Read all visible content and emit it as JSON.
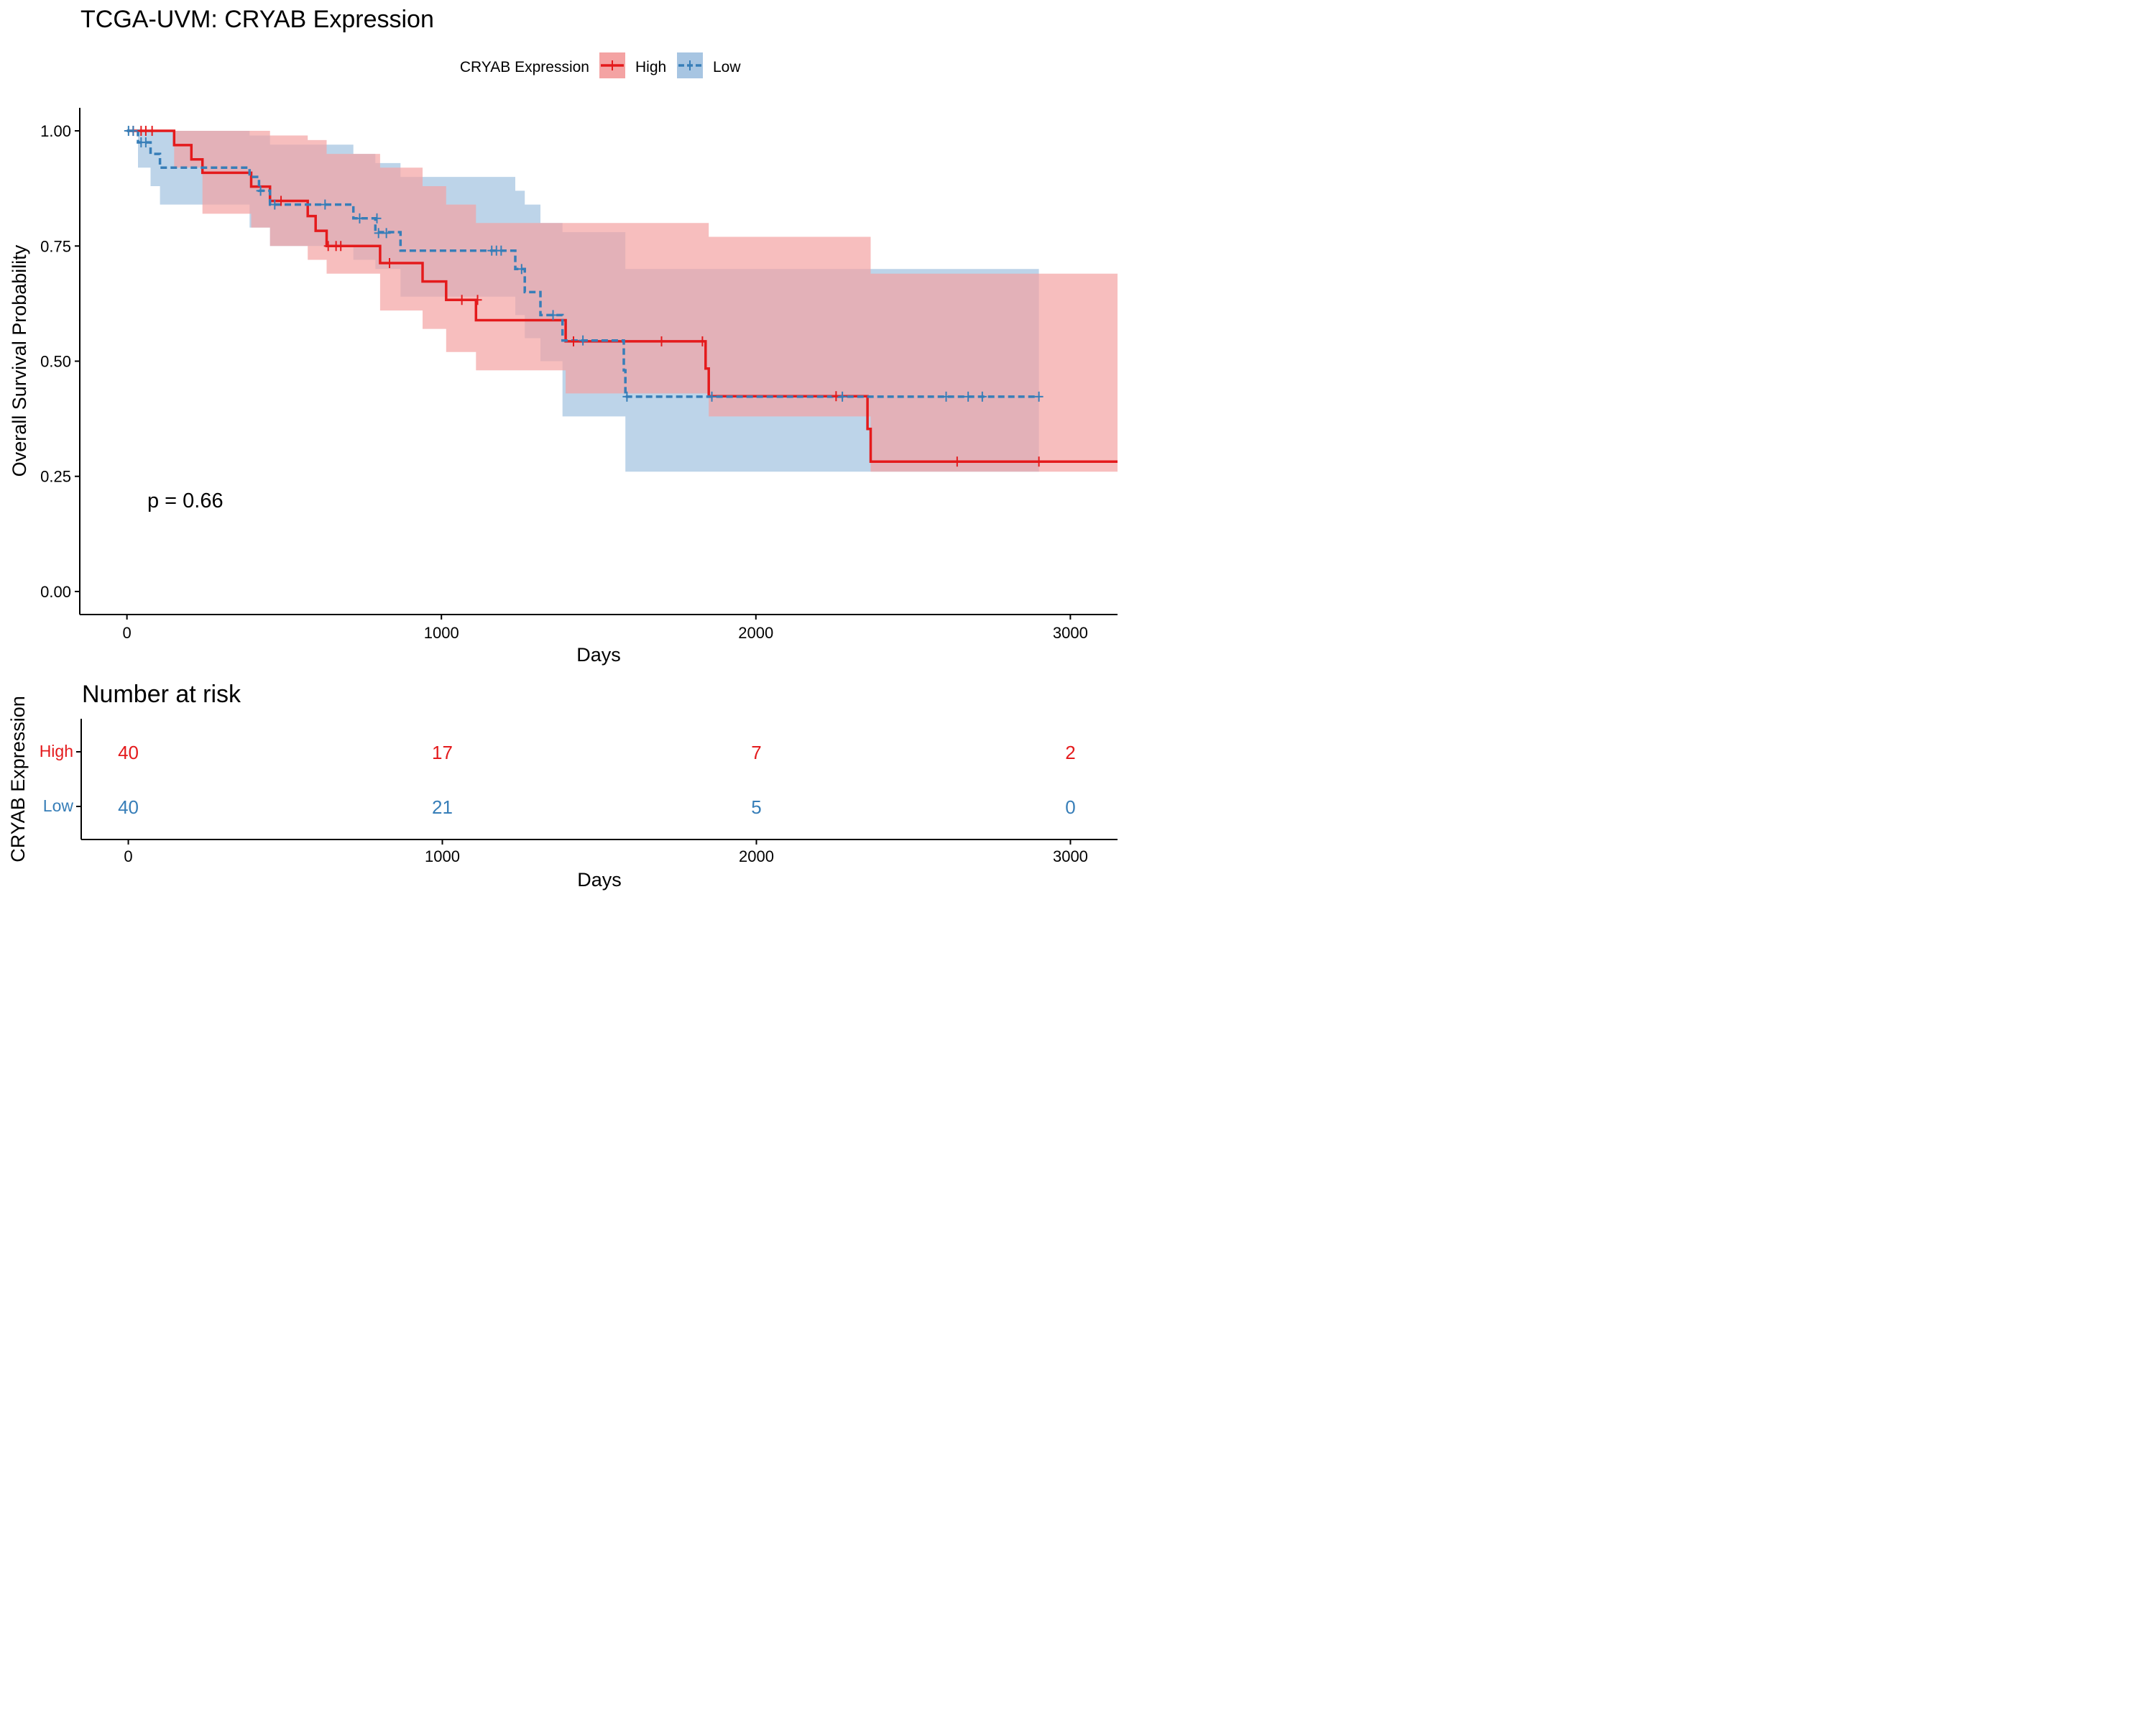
{
  "colors": {
    "high": "#e41a1c",
    "low": "#377eb8",
    "high_band": "#f4a3a3",
    "low_band": "#a7c5e2",
    "axis": "#000000"
  },
  "chart_data": {
    "type": "kaplan-meier",
    "title": "TCGA-UVM: CRYAB Expression",
    "legend": {
      "title": "CRYAB Expression",
      "position": "top",
      "entries": [
        "High",
        "Low"
      ]
    },
    "xlabel": "Days",
    "ylabel": "Overall Survival Probability",
    "xlim": [
      -150,
      3150
    ],
    "ylim": [
      -0.05,
      1.05
    ],
    "xticks": [
      0,
      1000,
      2000,
      3000
    ],
    "yticks": [
      0.0,
      0.25,
      0.5,
      0.75,
      1.0
    ],
    "ytick_labels": [
      "0.00",
      "0.25",
      "0.50",
      "0.75",
      "1.00"
    ],
    "pvalue_label": "p = 0.66",
    "series": [
      {
        "name": "High",
        "line": "solid",
        "steps": [
          [
            0,
            1.0
          ],
          [
            150,
            0.969
          ],
          [
            205,
            0.938
          ],
          [
            240,
            0.909
          ],
          [
            395,
            0.879
          ],
          [
            455,
            0.848
          ],
          [
            575,
            0.815
          ],
          [
            600,
            0.783
          ],
          [
            635,
            0.75
          ],
          [
            805,
            0.713
          ],
          [
            940,
            0.673
          ],
          [
            1015,
            0.633
          ],
          [
            1110,
            0.589
          ],
          [
            1395,
            0.543
          ],
          [
            1840,
            0.484
          ],
          [
            1850,
            0.424
          ],
          [
            2355,
            0.353
          ],
          [
            2365,
            0.282
          ],
          [
            3150,
            0.282
          ]
        ],
        "lower": [
          [
            0,
            1.0
          ],
          [
            150,
            0.92
          ],
          [
            240,
            0.82
          ],
          [
            395,
            0.79
          ],
          [
            455,
            0.75
          ],
          [
            575,
            0.72
          ],
          [
            635,
            0.69
          ],
          [
            805,
            0.61
          ],
          [
            940,
            0.57
          ],
          [
            1015,
            0.52
          ],
          [
            1110,
            0.48
          ],
          [
            1395,
            0.43
          ],
          [
            1850,
            0.38
          ],
          [
            2365,
            0.26
          ],
          [
            3150,
            0.13
          ]
        ],
        "upper": [
          [
            0,
            1.0
          ],
          [
            240,
            1.0
          ],
          [
            455,
            0.99
          ],
          [
            575,
            0.98
          ],
          [
            635,
            0.95
          ],
          [
            805,
            0.92
          ],
          [
            940,
            0.88
          ],
          [
            1015,
            0.84
          ],
          [
            1110,
            0.8
          ],
          [
            1395,
            0.8
          ],
          [
            1850,
            0.77
          ],
          [
            2365,
            0.69
          ],
          [
            3150,
            0.6
          ]
        ],
        "censors": [
          [
            20,
            1.0
          ],
          [
            45,
            1.0
          ],
          [
            60,
            1.0
          ],
          [
            80,
            1.0
          ],
          [
            490,
            0.848
          ],
          [
            640,
            0.75
          ],
          [
            665,
            0.75
          ],
          [
            680,
            0.75
          ],
          [
            835,
            0.713
          ],
          [
            1065,
            0.633
          ],
          [
            1115,
            0.633
          ],
          [
            1420,
            0.543
          ],
          [
            1700,
            0.543
          ],
          [
            1830,
            0.543
          ],
          [
            2255,
            0.424
          ],
          [
            2640,
            0.282
          ],
          [
            2900,
            0.282
          ]
        ]
      },
      {
        "name": "Low",
        "line": "dashed",
        "steps": [
          [
            0,
            1.0
          ],
          [
            35,
            0.975
          ],
          [
            75,
            0.95
          ],
          [
            105,
            0.92
          ],
          [
            390,
            0.9
          ],
          [
            420,
            0.87
          ],
          [
            455,
            0.84
          ],
          [
            720,
            0.81
          ],
          [
            790,
            0.78
          ],
          [
            870,
            0.74
          ],
          [
            1235,
            0.7
          ],
          [
            1265,
            0.65
          ],
          [
            1315,
            0.6
          ],
          [
            1385,
            0.545
          ],
          [
            1580,
            0.48
          ],
          [
            1585,
            0.423
          ],
          [
            2900,
            0.423
          ]
        ],
        "lower": [
          [
            0,
            1.0
          ],
          [
            35,
            0.92
          ],
          [
            75,
            0.88
          ],
          [
            105,
            0.84
          ],
          [
            390,
            0.79
          ],
          [
            455,
            0.75
          ],
          [
            720,
            0.72
          ],
          [
            790,
            0.7
          ],
          [
            870,
            0.64
          ],
          [
            1235,
            0.6
          ],
          [
            1265,
            0.55
          ],
          [
            1315,
            0.5
          ],
          [
            1385,
            0.38
          ],
          [
            1585,
            0.26
          ],
          [
            2900,
            0.26
          ]
        ],
        "upper": [
          [
            0,
            1.0
          ],
          [
            390,
            0.99
          ],
          [
            455,
            0.97
          ],
          [
            720,
            0.95
          ],
          [
            790,
            0.93
          ],
          [
            870,
            0.9
          ],
          [
            1235,
            0.87
          ],
          [
            1265,
            0.84
          ],
          [
            1315,
            0.8
          ],
          [
            1385,
            0.78
          ],
          [
            1585,
            0.7
          ],
          [
            2900,
            0.7
          ]
        ],
        "censors": [
          [
            5,
            1.0
          ],
          [
            20,
            1.0
          ],
          [
            45,
            0.975
          ],
          [
            60,
            0.975
          ],
          [
            425,
            0.87
          ],
          [
            470,
            0.84
          ],
          [
            630,
            0.84
          ],
          [
            740,
            0.81
          ],
          [
            795,
            0.81
          ],
          [
            800,
            0.778
          ],
          [
            825,
            0.778
          ],
          [
            1160,
            0.74
          ],
          [
            1175,
            0.74
          ],
          [
            1190,
            0.74
          ],
          [
            1255,
            0.7
          ],
          [
            1355,
            0.6
          ],
          [
            1450,
            0.545
          ],
          [
            1590,
            0.423
          ],
          [
            1860,
            0.423
          ],
          [
            2275,
            0.423
          ],
          [
            2605,
            0.423
          ],
          [
            2675,
            0.423
          ],
          [
            2720,
            0.423
          ],
          [
            2900,
            0.423
          ]
        ]
      }
    ],
    "risk_table": {
      "title": "Number at risk",
      "xlabel": "Days",
      "ylabel": "CRYAB Expression",
      "times": [
        0,
        1000,
        2000,
        3000
      ],
      "rows": [
        {
          "name": "High",
          "counts": [
            40,
            17,
            7,
            2
          ]
        },
        {
          "name": "Low",
          "counts": [
            40,
            21,
            5,
            0
          ]
        }
      ]
    }
  }
}
